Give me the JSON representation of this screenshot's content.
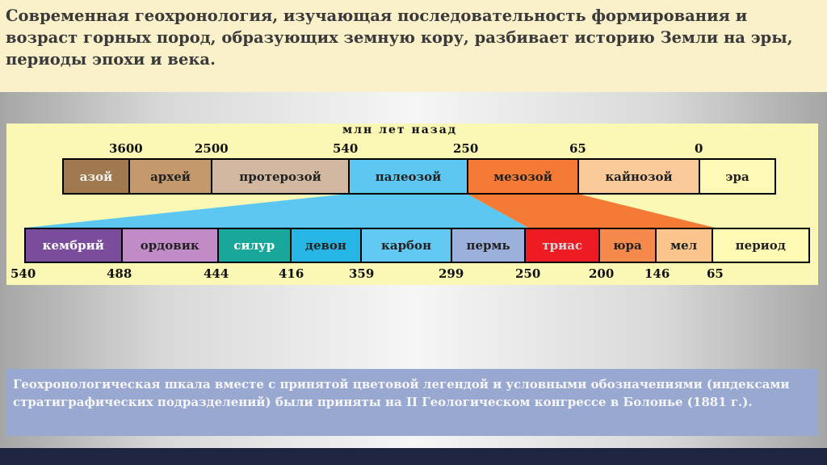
{
  "intro": {
    "text": "Современная геохронология, изучающая последовательность формирования и возраст горных пород, образующих земную кору, разбивает историю Земли на эры, периоды эпохи и века."
  },
  "diagram": {
    "unit_label": "млн лет назад",
    "era_ticks": [
      "3600",
      "2500",
      "540",
      "250",
      "65",
      "0"
    ],
    "eras": [
      {
        "label": "азой",
        "color": "#a07a4e"
      },
      {
        "label": "архей",
        "color": "#c49a6c"
      },
      {
        "label": "протерозой",
        "color": "#d2b8a0"
      },
      {
        "label": "палеозой",
        "color": "#5cc8f2"
      },
      {
        "label": "мезозой",
        "color": "#f47a35"
      },
      {
        "label": "кайнозой",
        "color": "#fac999"
      },
      {
        "label": "эра",
        "color": "#fef9b4"
      }
    ],
    "period_ticks": [
      "540",
      "488",
      "444",
      "416",
      "359",
      "299",
      "250",
      "200",
      "146",
      "65"
    ],
    "periods": [
      {
        "label": "кембрий",
        "color": "#7a4c9c",
        "text_color": "#ffffff"
      },
      {
        "label": "ордовик",
        "color": "#c08bc7",
        "text_color": "#222222"
      },
      {
        "label": "силур",
        "color": "#1aa79b",
        "text_color": "#ffffff"
      },
      {
        "label": "девон",
        "color": "#27b5e6",
        "text_color": "#222222"
      },
      {
        "label": "карбон",
        "color": "#62c9f2",
        "text_color": "#222222"
      },
      {
        "label": "пермь",
        "color": "#9cb0dc",
        "text_color": "#222222"
      },
      {
        "label": "триас",
        "color": "#ed1b24",
        "text_color": "#d8d8d8"
      },
      {
        "label": "юра",
        "color": "#f58a4c",
        "text_color": "#222222"
      },
      {
        "label": "мел",
        "color": "#fbc58d",
        "text_color": "#222222"
      },
      {
        "label": "период",
        "color": "#fefab4",
        "text_color": "#222222"
      }
    ],
    "funnel_colors": {
      "paleozoic": "#5cc8f2",
      "mesozoic": "#f47a35"
    }
  },
  "caption": {
    "text": "Геохронологическая шкала вместе с принятой цветовой легендой и условными обозначениями (индексами стратиграфических подразделений) были приняты на II Геологическом конгрессе в Болонье (1881 г.)."
  }
}
